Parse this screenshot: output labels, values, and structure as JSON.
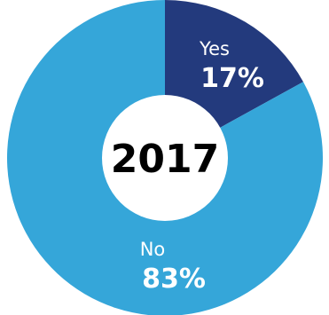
{
  "chart_data": {
    "type": "pie",
    "variant": "donut",
    "center_label": "2017",
    "legend": "none",
    "slices": [
      {
        "label": "Yes",
        "value": 17,
        "display": "17%",
        "color": "#233a7d"
      },
      {
        "label": "No",
        "value": 83,
        "display": "83%",
        "color": "#35a6d9"
      }
    ]
  }
}
